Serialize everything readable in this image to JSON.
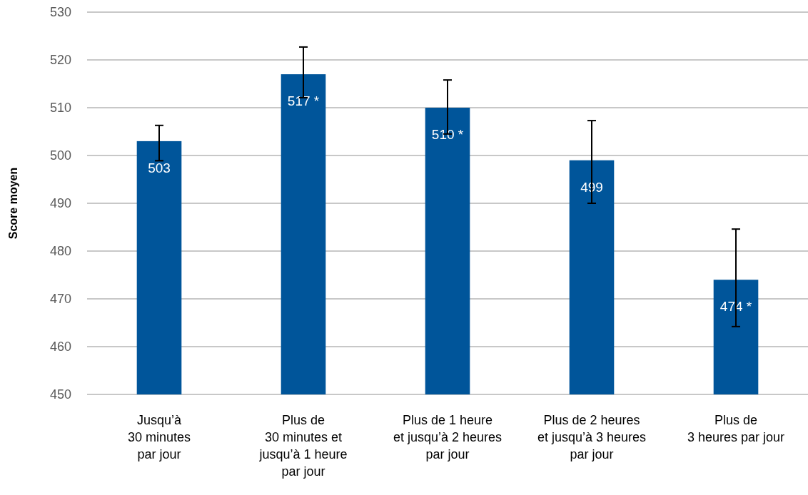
{
  "chart_data": {
    "type": "bar",
    "ylabel": "Score moyen",
    "categories": [
      "Jusqu’à\n30 minutes\npar jour",
      "Plus de\n30 minutes et\njusqu’à 1 heure\npar jour",
      "Plus de 1 heure\net jusqu’à 2 heures\npar jour",
      "Plus de 2 heures\net jusqu’à 3 heures\npar jour",
      "Plus de\n3 heures par jour"
    ],
    "values": [
      503,
      517,
      510,
      499,
      474
    ],
    "value_labels": [
      "503",
      "517 *",
      "510 *",
      "499",
      "474 *"
    ],
    "errors": [
      [
        498.9,
        506.3
      ],
      [
        512.1,
        522.7
      ],
      [
        504.5,
        515.8
      ],
      [
        490,
        507.3
      ],
      [
        464.2,
        484.6
      ]
    ],
    "color": "#00559a",
    "ylim": [
      450,
      530
    ],
    "yticks": [
      450,
      460,
      470,
      480,
      490,
      500,
      510,
      520,
      530
    ],
    "grid": "y"
  }
}
